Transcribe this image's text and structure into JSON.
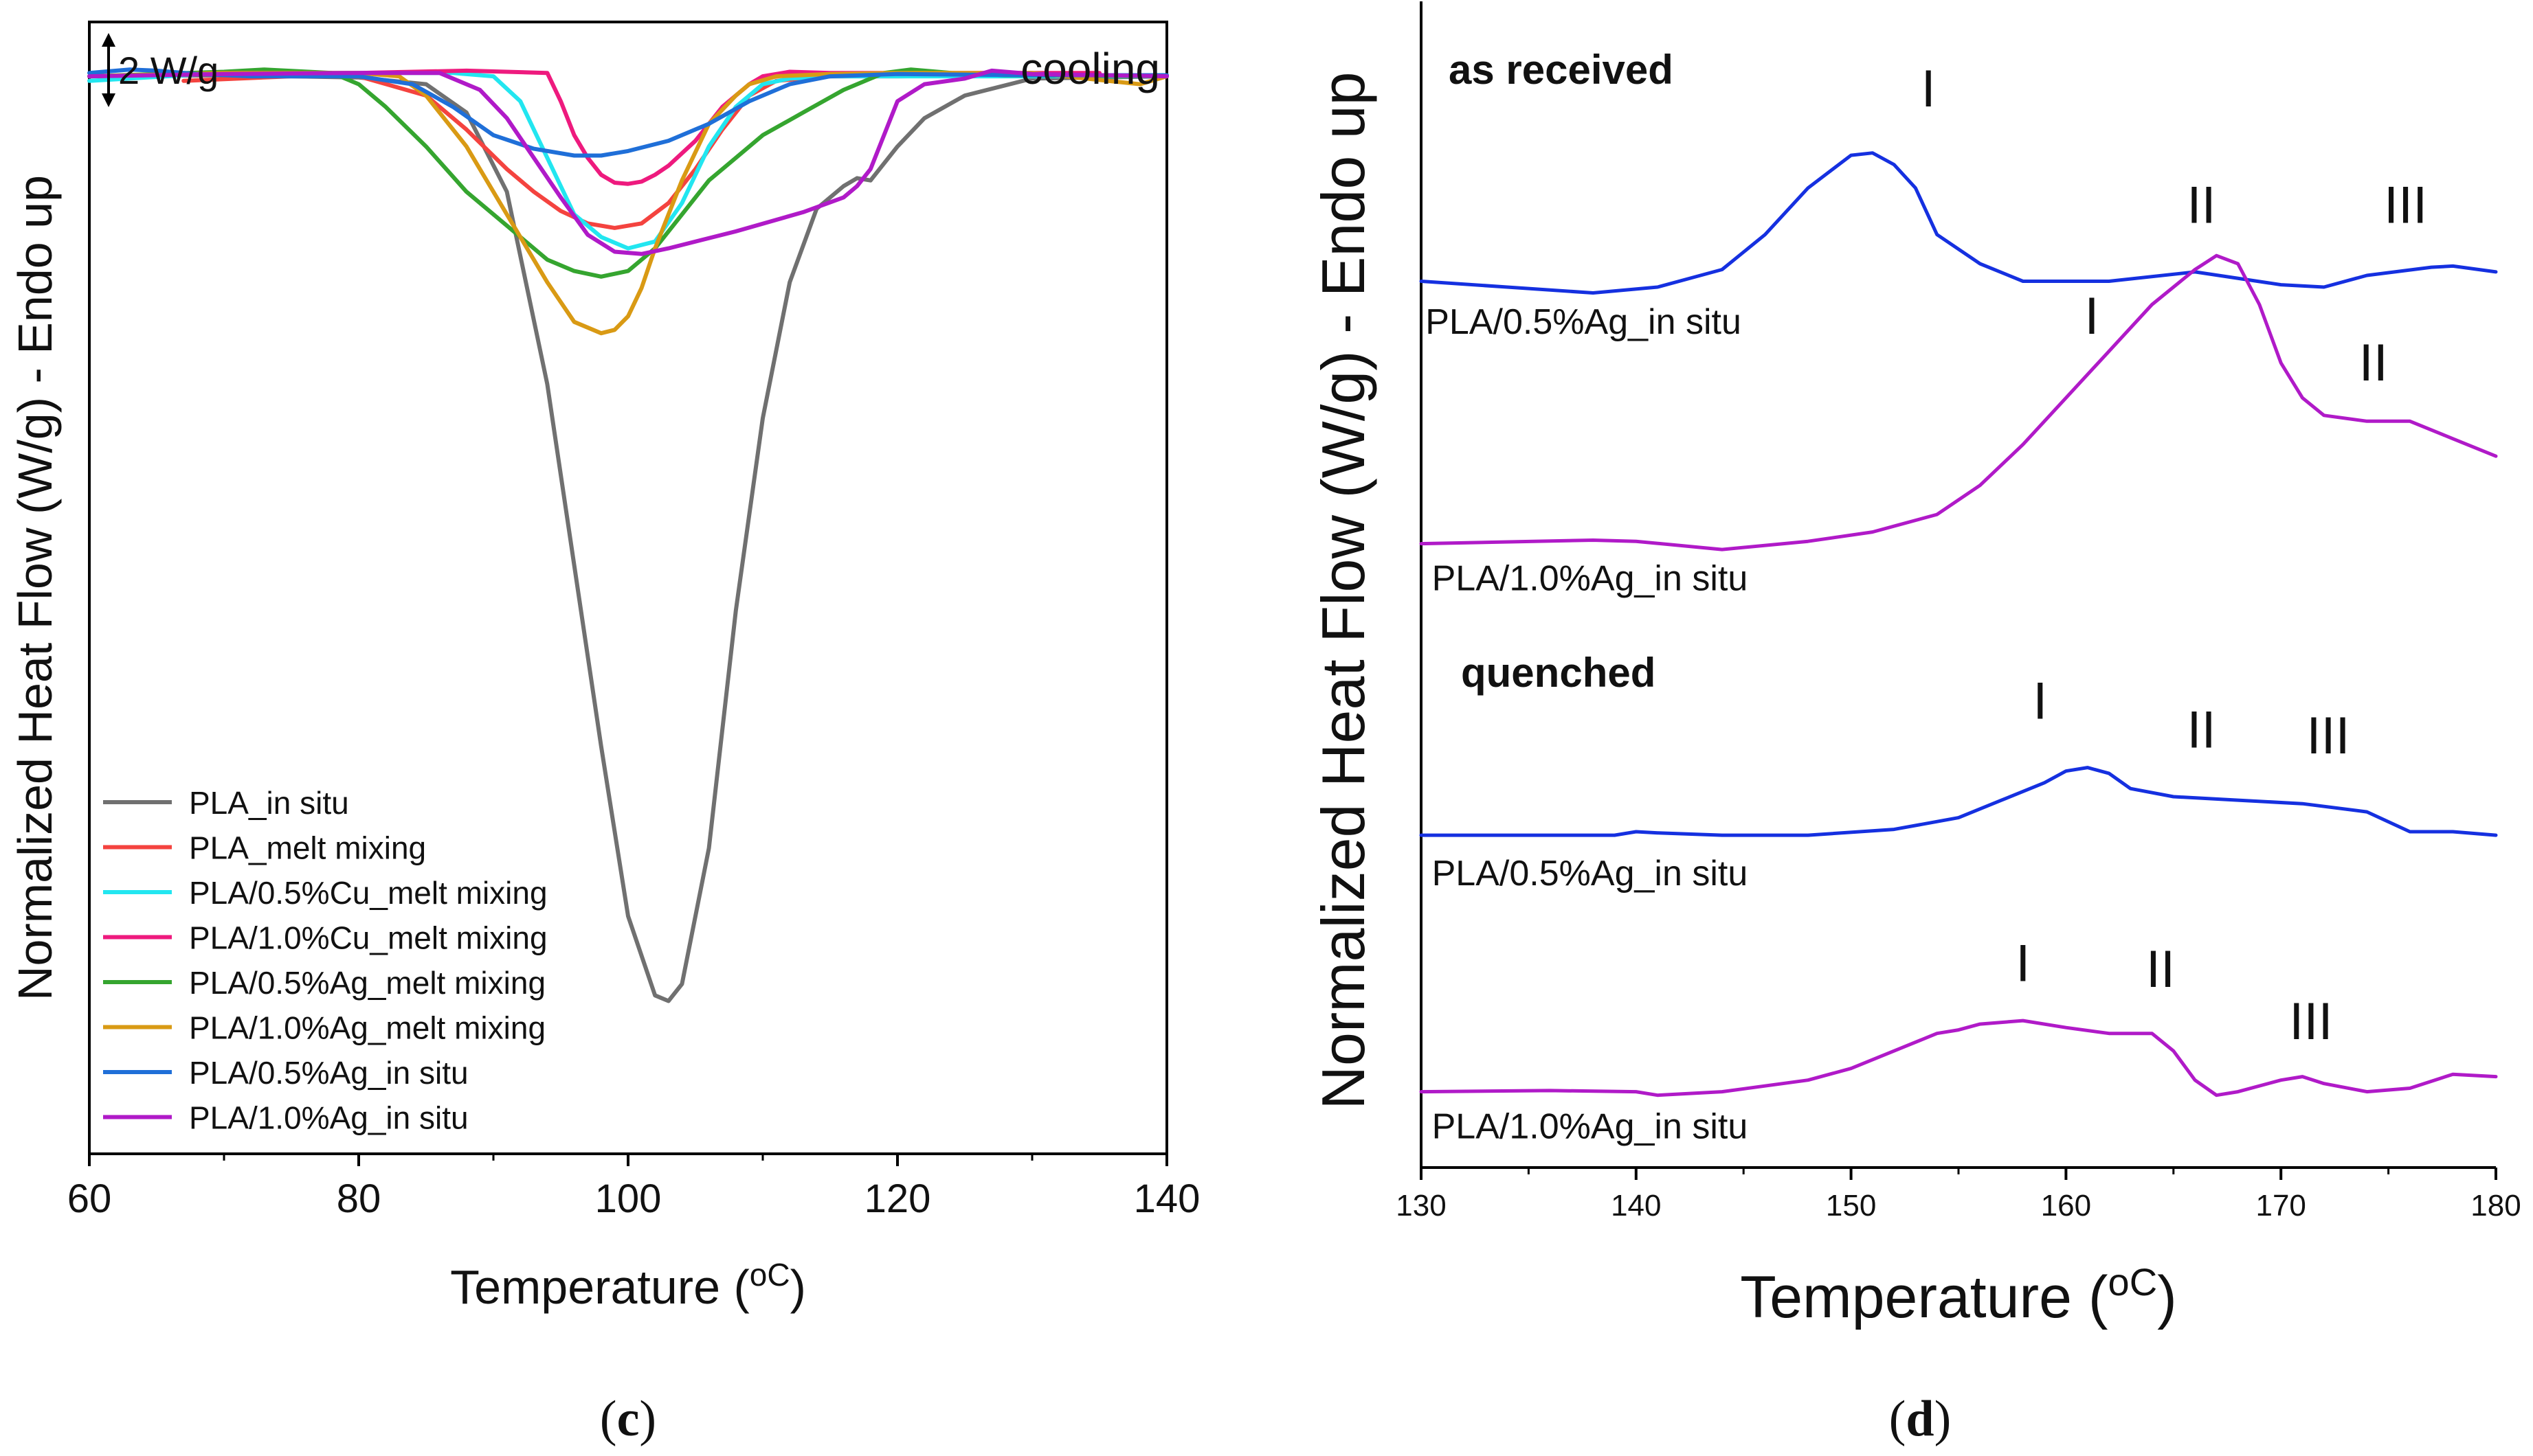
{
  "captions": {
    "c": "c",
    "d": "d"
  },
  "chart_data": [
    {
      "id": "c",
      "type": "line",
      "title": "",
      "xlabel": "Temperature",
      "xlabel_unit": "oC",
      "ylabel": "Normalized Heat Flow (W/g) - Endo up",
      "xlim": [
        60,
        140
      ],
      "ylim": [
        0,
        1
      ],
      "xticks": [
        60,
        80,
        100,
        120,
        140
      ],
      "scale_bar": "2 W/g",
      "annotation": "cooling",
      "legend_position": "bottom-left",
      "series": [
        {
          "name": "PLA_in situ",
          "color": "#707070",
          "x": [
            60,
            70,
            80,
            85,
            88,
            91,
            94,
            96,
            98,
            100,
            102,
            103,
            104,
            106,
            108,
            110,
            112,
            114,
            116,
            117,
            118,
            120,
            122,
            125,
            130,
            140
          ],
          "y": [
            0.952,
            0.953,
            0.951,
            0.945,
            0.92,
            0.85,
            0.68,
            0.52,
            0.36,
            0.21,
            0.14,
            0.135,
            0.15,
            0.27,
            0.48,
            0.65,
            0.77,
            0.835,
            0.855,
            0.862,
            0.86,
            0.89,
            0.915,
            0.935,
            0.95,
            0.952
          ]
        },
        {
          "name": "PLA_melt mixing",
          "color": "#f4433f",
          "x": [
            67,
            75,
            80,
            85,
            88,
            91,
            93,
            95,
            97,
            99,
            101,
            103,
            105,
            107,
            109,
            111,
            115,
            120,
            130,
            140
          ],
          "y": [
            0.948,
            0.952,
            0.952,
            0.935,
            0.905,
            0.87,
            0.85,
            0.833,
            0.822,
            0.818,
            0.822,
            0.84,
            0.87,
            0.905,
            0.935,
            0.948,
            0.952,
            0.952,
            0.953,
            0.952
          ]
        },
        {
          "name": "PLA/0.5%Cu_melt mixing",
          "color": "#22e6f0",
          "x": [
            60,
            70,
            80,
            87,
            90,
            92,
            94,
            96,
            98,
            100,
            102,
            104,
            106,
            108,
            110,
            112,
            115,
            120,
            130,
            140
          ],
          "y": [
            0.948,
            0.955,
            0.955,
            0.955,
            0.952,
            0.93,
            0.88,
            0.83,
            0.81,
            0.8,
            0.806,
            0.84,
            0.89,
            0.925,
            0.945,
            0.95,
            0.952,
            0.952,
            0.952,
            0.952
          ]
        },
        {
          "name": "PLA/1.0%Cu_melt mixing",
          "color": "#ee1a7e",
          "x": [
            60,
            70,
            80,
            88,
            94,
            95,
            96,
            97,
            98,
            99,
            100,
            101,
            102,
            103,
            105,
            107,
            109,
            110,
            112,
            115,
            120,
            135
          ],
          "y": [
            0.952,
            0.955,
            0.955,
            0.957,
            0.955,
            0.93,
            0.9,
            0.88,
            0.865,
            0.858,
            0.857,
            0.859,
            0.865,
            0.873,
            0.895,
            0.925,
            0.945,
            0.952,
            0.956,
            0.955,
            0.955,
            0.955
          ]
        },
        {
          "name": "PLA/0.5%Ag_melt mixing",
          "color": "#35a52f",
          "x": [
            60,
            70,
            73,
            78,
            80,
            82,
            85,
            88,
            91,
            94,
            96,
            98,
            100,
            102,
            104,
            106,
            108,
            110,
            113,
            116,
            119,
            121,
            124,
            128,
            140
          ],
          "y": [
            0.952,
            0.956,
            0.958,
            0.955,
            0.945,
            0.925,
            0.89,
            0.85,
            0.82,
            0.79,
            0.78,
            0.775,
            0.78,
            0.8,
            0.83,
            0.86,
            0.88,
            0.9,
            0.92,
            0.94,
            0.955,
            0.958,
            0.955,
            0.953,
            0.952
          ]
        },
        {
          "name": "PLA/1.0%Ag_melt mixing",
          "color": "#d99a14",
          "x": [
            60,
            70,
            80,
            83,
            85,
            88,
            91,
            94,
            96,
            98,
            99,
            100,
            101,
            102,
            104,
            106,
            108,
            109,
            111,
            115,
            120,
            130,
            138,
            140
          ],
          "y": [
            0.952,
            0.955,
            0.955,
            0.952,
            0.935,
            0.89,
            0.83,
            0.77,
            0.735,
            0.725,
            0.728,
            0.74,
            0.765,
            0.8,
            0.86,
            0.91,
            0.935,
            0.945,
            0.952,
            0.954,
            0.955,
            0.955,
            0.945,
            0.952
          ]
        },
        {
          "name": "PLA/0.5%Ag_in situ",
          "color": "#1f6fd8",
          "x": [
            60,
            63,
            65,
            68,
            72,
            80,
            84,
            87,
            90,
            93,
            96,
            98,
            100,
            103,
            106,
            109,
            112,
            115,
            120,
            130,
            140
          ],
          "y": [
            0.955,
            0.958,
            0.957,
            0.954,
            0.952,
            0.952,
            0.945,
            0.925,
            0.9,
            0.888,
            0.882,
            0.882,
            0.886,
            0.895,
            0.91,
            0.93,
            0.945,
            0.952,
            0.954,
            0.953,
            0.953
          ]
        },
        {
          "name": "PLA/1.0%Ag_in situ",
          "color": "#b01ac8",
          "x": [
            60,
            70,
            80,
            86,
            89,
            91,
            93,
            95,
            97,
            99,
            101,
            103,
            108,
            113,
            116,
            117,
            118,
            119,
            120,
            122,
            125,
            127,
            130,
            140
          ],
          "y": [
            0.952,
            0.954,
            0.955,
            0.955,
            0.94,
            0.915,
            0.88,
            0.845,
            0.812,
            0.797,
            0.795,
            0.8,
            0.815,
            0.832,
            0.845,
            0.855,
            0.87,
            0.9,
            0.93,
            0.945,
            0.95,
            0.957,
            0.954,
            0.952
          ]
        }
      ]
    },
    {
      "id": "d",
      "type": "line",
      "title": "",
      "xlabel": "Temperature",
      "xlabel_unit": "oC",
      "ylabel": "Normalized Heat Flow (W/g) - Endo up",
      "xlim": [
        130,
        180
      ],
      "ylim": [
        0,
        1
      ],
      "xticks": [
        130,
        140,
        150,
        160,
        170,
        180
      ],
      "group_labels": [
        "as received",
        "quenched"
      ],
      "series": [
        {
          "name": "PLA/0.5%Ag_in situ",
          "group": "as received",
          "color": "#1530e0",
          "x": [
            130,
            134,
            138,
            141,
            144,
            146,
            148,
            150,
            151,
            152,
            153,
            154,
            156,
            158,
            162,
            166,
            170,
            172,
            174,
            177,
            178,
            180
          ],
          "y": [
            0.76,
            0.755,
            0.75,
            0.755,
            0.77,
            0.8,
            0.84,
            0.868,
            0.87,
            0.86,
            0.84,
            0.8,
            0.775,
            0.76,
            0.76,
            0.768,
            0.757,
            0.755,
            0.765,
            0.772,
            0.773,
            0.768
          ]
        },
        {
          "name": "PLA/1.0%Ag_in situ",
          "group": "as received",
          "color": "#b01ac8",
          "x": [
            130,
            138,
            140,
            144,
            148,
            151,
            154,
            156,
            158,
            160,
            162,
            164,
            166,
            167,
            168,
            169,
            170,
            171,
            172,
            174,
            176,
            178,
            180
          ],
          "y": [
            0.535,
            0.538,
            0.537,
            0.53,
            0.537,
            0.545,
            0.56,
            0.585,
            0.62,
            0.66,
            0.7,
            0.74,
            0.77,
            0.782,
            0.775,
            0.74,
            0.69,
            0.66,
            0.645,
            0.64,
            0.64,
            0.625,
            0.61
          ]
        },
        {
          "name": "PLA/0.5%Ag_in situ",
          "group": "quenched",
          "color": "#1530e0",
          "x": [
            130,
            135,
            139,
            140,
            141,
            144,
            148,
            152,
            155,
            157,
            159,
            160,
            161,
            162,
            163,
            165,
            168,
            171,
            174,
            176,
            178,
            180
          ],
          "y": [
            0.285,
            0.285,
            0.285,
            0.288,
            0.287,
            0.285,
            0.285,
            0.29,
            0.3,
            0.315,
            0.33,
            0.34,
            0.343,
            0.338,
            0.325,
            0.318,
            0.315,
            0.312,
            0.305,
            0.288,
            0.288,
            0.285
          ]
        },
        {
          "name": "PLA/1.0%Ag_in situ",
          "group": "quenched",
          "color": "#b01ac8",
          "x": [
            130,
            136,
            140,
            141,
            144,
            148,
            150,
            152,
            154,
            155,
            156,
            158,
            160,
            162,
            164,
            165,
            166,
            167,
            168,
            170,
            171,
            172,
            174,
            176,
            178,
            180
          ],
          "y": [
            0.065,
            0.066,
            0.065,
            0.062,
            0.065,
            0.075,
            0.085,
            0.1,
            0.115,
            0.118,
            0.123,
            0.126,
            0.12,
            0.115,
            0.115,
            0.1,
            0.075,
            0.062,
            0.065,
            0.075,
            0.078,
            0.072,
            0.065,
            0.068,
            0.08,
            0.078
          ]
        }
      ],
      "peak_labels": [
        {
          "text": "I",
          "x": 153.6,
          "y": 0.91
        },
        {
          "text": "II",
          "x": 166.3,
          "y": 0.81
        },
        {
          "text": "III",
          "x": 175.8,
          "y": 0.81
        },
        {
          "text": "I",
          "x": 161.2,
          "y": 0.715
        },
        {
          "text": "II",
          "x": 174.3,
          "y": 0.675
        },
        {
          "text": "I",
          "x": 158.8,
          "y": 0.385
        },
        {
          "text": "II",
          "x": 166.3,
          "y": 0.36
        },
        {
          "text": "III",
          "x": 172.2,
          "y": 0.355
        },
        {
          "text": "I",
          "x": 158.0,
          "y": 0.16
        },
        {
          "text": "II",
          "x": 164.4,
          "y": 0.155
        },
        {
          "text": "III",
          "x": 171.4,
          "y": 0.11
        }
      ],
      "curve_labels": [
        {
          "text": "PLA/0.5%Ag_in situ",
          "x": 130.2,
          "y": 0.715
        },
        {
          "text": "PLA/1.0%Ag_in situ",
          "x": 130.5,
          "y": 0.495
        },
        {
          "text": "PLA/0.5%Ag_in situ",
          "x": 130.5,
          "y": 0.242
        },
        {
          "text": "PLA/1.0%Ag_in situ",
          "x": 130.5,
          "y": 0.025
        }
      ]
    }
  ]
}
